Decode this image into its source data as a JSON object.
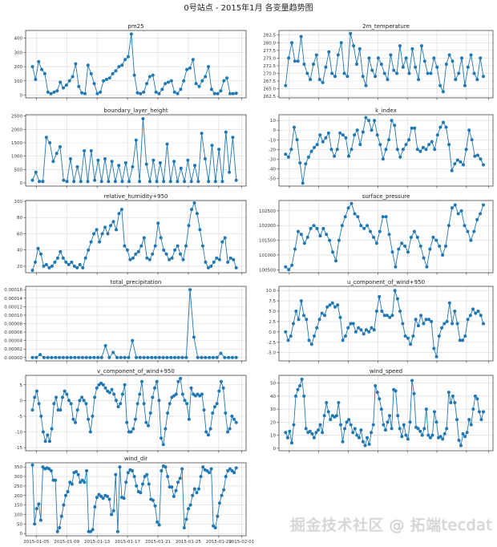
{
  "title": "0号站点 - 2015年1月 各变量趋势图",
  "watermark": "掘金技术社区 @ 拓端tecdat",
  "colors": {
    "series": "#1f77b4",
    "grid": "#d9d9d9",
    "frame": "#444444"
  },
  "chart_data": {
    "type": "line",
    "x_axis": {
      "unit": "day of January 2015",
      "xlim": [
        3.6,
        32.6
      ],
      "data_start": 4.5,
      "data_end": 31.3,
      "ticks": [
        5,
        9,
        13,
        17,
        21,
        25,
        29,
        32
      ],
      "tick_labels": [
        "2015-01-05",
        "2015-01-09",
        "2015-01-13",
        "2015-01-17",
        "2015-01-21",
        "2015-01-25",
        "2015-01-29",
        "2015-02-01"
      ]
    },
    "panels": [
      {
        "title": "pm25",
        "ylim": [
          -20,
          455
        ],
        "yticks": [
          0,
          100,
          200,
          300,
          400
        ],
        "ytick_labels": [
          "0",
          "100",
          "200",
          "300",
          "400"
        ],
        "values": [
          200,
          110,
          235,
          180,
          150,
          20,
          10,
          20,
          30,
          90,
          50,
          70,
          100,
          130,
          220,
          60,
          15,
          10,
          210,
          150,
          80,
          10,
          20,
          100,
          110,
          120,
          150,
          170,
          200,
          210,
          250,
          270,
          430,
          140,
          15,
          10,
          20,
          80,
          130,
          140,
          20,
          10,
          40,
          80,
          90,
          100,
          20,
          10,
          40,
          100,
          180,
          190,
          250,
          80,
          60,
          100,
          130,
          200,
          40,
          10,
          10,
          30,
          100,
          120,
          10,
          10,
          12
        ]
      },
      {
        "title": "2m_temperature",
        "ylim": [
          262,
          284
        ],
        "yticks": [
          262.5,
          265,
          267.5,
          270,
          272.5,
          275,
          277.5,
          280,
          282.5
        ],
        "ytick_labels": [
          "262.5",
          "265.0",
          "267.5",
          "270.0",
          "272.5",
          "275.0",
          "277.5",
          "280.0",
          "282.5"
        ],
        "values": [
          266,
          275,
          280,
          274,
          274,
          282,
          273,
          270,
          268,
          273,
          276,
          268,
          267,
          272,
          277,
          270,
          269,
          276,
          280,
          270,
          269,
          283,
          279,
          273,
          278,
          269,
          266,
          275,
          271,
          269,
          275,
          273,
          270,
          268,
          276,
          271,
          270,
          279,
          272,
          275,
          270,
          278,
          272,
          268,
          279,
          274,
          270,
          270,
          275,
          272,
          266,
          264,
          273,
          276,
          274,
          268,
          270,
          275,
          266,
          272,
          276,
          270,
          268,
          275,
          269
        ]
      },
      {
        "title": "boundary_layer_height",
        "ylim": [
          -120,
          2550
        ],
        "yticks": [
          0,
          500,
          1000,
          1500,
          2000,
          2500
        ],
        "ytick_labels": [
          "0",
          "500",
          "1000",
          "1500",
          "2000",
          "2500"
        ],
        "values": [
          100,
          400,
          50,
          50,
          1700,
          1500,
          800,
          1100,
          1350,
          100,
          50,
          900,
          50,
          600,
          50,
          1200,
          50,
          1200,
          100,
          850,
          50,
          900,
          50,
          800,
          50,
          650,
          50,
          750,
          50,
          600,
          1600,
          50,
          2400,
          700,
          50,
          850,
          50,
          750,
          50,
          1450,
          50,
          800,
          50,
          550,
          50,
          850,
          50,
          650,
          50,
          1850,
          900,
          50,
          1400,
          50,
          1250,
          50,
          1900,
          400,
          1700,
          100
        ]
      },
      {
        "title": "k_index",
        "ylim": [
          -58,
          16
        ],
        "yticks": [
          -50,
          -40,
          -30,
          -20,
          -10,
          0,
          10
        ],
        "ytick_labels": [
          "-50",
          "-40",
          "-30",
          "-20",
          "-10",
          "0",
          "10"
        ],
        "values": [
          -25,
          -28,
          -20,
          3,
          -10,
          -34,
          -55,
          -35,
          -28,
          -22,
          -18,
          -15,
          -5,
          -12,
          -8,
          -3,
          -20,
          -27,
          -20,
          -3,
          -5,
          -8,
          -27,
          -20,
          -5,
          0,
          -15,
          -2,
          13,
          10,
          0,
          10,
          -5,
          -15,
          -30,
          -20,
          -10,
          10,
          5,
          -20,
          -28,
          -20,
          -15,
          -10,
          2,
          2,
          -20,
          -22,
          -18,
          -20,
          -15,
          -12,
          -20,
          -5,
          3,
          8,
          3,
          -15,
          -42,
          -35,
          -31,
          -33,
          -36,
          -20,
          0,
          -10,
          -27,
          -26,
          -30,
          -36
        ]
      },
      {
        "title": "relative_humidity+950",
        "ylim": [
          12,
          101
        ],
        "yticks": [
          20,
          40,
          60,
          80,
          100
        ],
        "ytick_labels": [
          "20",
          "40",
          "60",
          "80",
          "100"
        ],
        "values": [
          15,
          25,
          42,
          35,
          20,
          22,
          18,
          20,
          25,
          30,
          38,
          30,
          25,
          22,
          25,
          20,
          18,
          22,
          18,
          30,
          40,
          50,
          60,
          65,
          50,
          60,
          68,
          60,
          70,
          75,
          65,
          85,
          90,
          45,
          40,
          28,
          30,
          35,
          38,
          45,
          55,
          30,
          28,
          35,
          45,
          73,
          55,
          40,
          35,
          28,
          30,
          40,
          45,
          35,
          28,
          45,
          70,
          90,
          98,
          85,
          65,
          45,
          25,
          18,
          20,
          25,
          30,
          28,
          50,
          55,
          25,
          30,
          28,
          18
        ]
      },
      {
        "title": "surface_pressure",
        "ylim": [
          100400,
          102850
        ],
        "yticks": [
          100500,
          101000,
          101500,
          102000,
          102500
        ],
        "ytick_labels": [
          "100500",
          "101000",
          "101500",
          "102000",
          "102500"
        ],
        "values": [
          100600,
          100500,
          100650,
          101200,
          101800,
          101700,
          101400,
          101600,
          101900,
          102000,
          101900,
          101650,
          101900,
          101700,
          101500,
          101100,
          100800,
          101500,
          102000,
          102300,
          102600,
          102750,
          102400,
          102300,
          102000,
          101900,
          102000,
          101800,
          101600,
          101400,
          101800,
          102300,
          102300,
          101700,
          101100,
          100600,
          101200,
          101400,
          101300,
          101100,
          101600,
          101800,
          101600,
          101300,
          100900,
          100600,
          101200,
          101600,
          101500,
          101300,
          101000,
          101300,
          102000,
          102600,
          102700,
          102400,
          102500,
          102000,
          101800,
          101500,
          101800,
          102200,
          102400,
          102700
        ]
      },
      {
        "title": "total_precipitation",
        "ylim": [
          -8e-06,
          0.000168
        ],
        "yticks": [
          0,
          2e-05,
          4e-05,
          6e-05,
          8e-05,
          0.0001,
          0.00012,
          0.00014,
          0.00016
        ],
        "ytick_labels": [
          "0.00000",
          "0.00002",
          "0.00004",
          "0.00006",
          "0.00008",
          "0.00010",
          "0.00012",
          "0.00014",
          "0.00016"
        ],
        "values": [
          0,
          0,
          7e-06,
          0,
          0,
          0,
          0,
          0,
          0,
          0,
          0,
          0,
          0,
          0,
          0,
          0,
          0,
          0,
          0,
          2.8e-05,
          0,
          1.2e-05,
          0,
          0,
          0,
          0,
          4e-05,
          0,
          0,
          0,
          0,
          0,
          0,
          0,
          0,
          0,
          0,
          0,
          0,
          0,
          0,
          0.00016,
          4.8e-05,
          0,
          0,
          0,
          0,
          0,
          0,
          1e-05,
          0,
          0,
          0,
          0
        ]
      },
      {
        "title": "u_component_of_wind+950",
        "ylim": [
          -7,
          11
        ],
        "yticks": [
          -5,
          -2.5,
          0,
          2.5,
          5,
          7.5,
          10
        ],
        "ytick_labels": [
          "-5.0",
          "-2.5",
          "0.0",
          "2.5",
          "5.0",
          "7.5",
          "10.0"
        ],
        "values": [
          0,
          -2,
          -1,
          2,
          5,
          3,
          7.5,
          4,
          3,
          -2,
          -3,
          -1,
          1,
          3,
          4.5,
          4,
          6,
          6.5,
          7,
          6,
          6.5,
          3.5,
          -2,
          -1,
          1,
          2,
          2,
          0,
          1,
          0.5,
          -0.5,
          0.5,
          0,
          1,
          0.5,
          5,
          8.5,
          5,
          4,
          4,
          3.5,
          4,
          10,
          8,
          5,
          2,
          -1,
          -1.5,
          -3,
          -1,
          3,
          1.5,
          4,
          2,
          3,
          3,
          2.5,
          -4,
          -6,
          -1,
          1,
          2,
          2.5,
          7,
          2,
          5,
          2,
          -2,
          -2,
          -1,
          3,
          4,
          5.5,
          4.5,
          5,
          4,
          2
        ]
      },
      {
        "title": "v_component_of_wind+950",
        "ylim": [
          -16,
          8
        ],
        "yticks": [
          -15,
          -10,
          -5,
          0,
          5
        ],
        "ytick_labels": [
          "-15",
          "-10",
          "-5",
          "0",
          "5"
        ],
        "values": [
          -3,
          1,
          3,
          -1,
          -5,
          -10,
          -13,
          -11,
          -13,
          -9,
          -1,
          1,
          -3,
          -3,
          1,
          3,
          2,
          0,
          -1,
          -6,
          -7,
          -3,
          0,
          1,
          0,
          -1,
          -6,
          -10,
          -5,
          1,
          4,
          5,
          5.5,
          5,
          4,
          3,
          2.5,
          3.5,
          2,
          0,
          -2,
          -1,
          2,
          5,
          -7,
          -10,
          -10,
          -9,
          -6,
          -1,
          2,
          6,
          -1,
          -7,
          -8,
          -4,
          1,
          4,
          6,
          0,
          -12,
          -14,
          -9,
          -4,
          -1,
          1,
          1.5,
          2,
          6,
          7,
          2,
          0,
          -1,
          -6,
          4,
          2,
          1.5,
          2,
          1.5,
          2,
          -3,
          -10,
          -11,
          -9,
          -4,
          -2,
          -1,
          3,
          6,
          4,
          -4,
          -10,
          -9,
          -5,
          -6,
          -7
        ]
      },
      {
        "title": "wind_speed",
        "ylim": [
          -2,
          56
        ],
        "yticks": [
          0,
          10,
          20,
          30,
          40,
          50
        ],
        "ytick_labels": [
          "0",
          "10",
          "20",
          "30",
          "40",
          "50"
        ],
        "values": [
          12,
          8,
          13,
          4,
          18,
          40,
          45,
          48,
          53,
          40,
          15,
          12,
          13,
          11,
          8,
          12,
          14,
          18,
          12,
          25,
          35,
          28,
          22,
          25,
          24,
          25,
          35,
          18,
          5,
          15,
          20,
          22,
          18,
          12,
          15,
          10,
          8,
          14,
          5,
          2,
          8,
          3,
          12,
          18,
          48,
          43,
          38,
          30,
          18,
          14,
          20,
          25,
          15,
          45,
          44,
          25,
          15,
          9,
          18,
          10,
          7,
          20,
          52,
          42,
          16,
          15,
          13,
          10,
          15,
          30,
          10,
          8,
          10,
          28,
          20,
          8,
          9,
          7,
          11,
          15,
          43,
          35,
          40,
          35,
          22,
          6,
          2,
          11,
          9,
          12,
          22,
          18,
          30,
          40,
          38,
          28,
          22,
          28
        ]
      },
      {
        "title": "wind_dir",
        "ylim": [
          -12,
          372
        ],
        "yticks": [
          0,
          50,
          100,
          150,
          200,
          250,
          300,
          350
        ],
        "ytick_labels": [
          "0",
          "50",
          "100",
          "150",
          "200",
          "250",
          "300",
          "350"
        ],
        "values": [
          360,
          50,
          130,
          155,
          70,
          350,
          340,
          345,
          340,
          330,
          280,
          280,
          10,
          30,
          90,
          150,
          200,
          220,
          270,
          260,
          320,
          325,
          310,
          270,
          280,
          270,
          330,
          10,
          10,
          20,
          140,
          190,
          205,
          195,
          185,
          200,
          195,
          180,
          100,
          120,
          310,
          10,
          350,
          190,
          185,
          270,
          320,
          335,
          330,
          300,
          250,
          220,
          215,
          260,
          300,
          310,
          260,
          180,
          175,
          145,
          60,
          45,
          330,
          355,
          350,
          300,
          245,
          245,
          195,
          225,
          270,
          290,
          340,
          30,
          75,
          130,
          150,
          200,
          235,
          215,
          235,
          300,
          350,
          335,
          330,
          320,
          340,
          40,
          30,
          90,
          160,
          200,
          230,
          300,
          330,
          340,
          330,
          320,
          345
        ]
      }
    ]
  }
}
